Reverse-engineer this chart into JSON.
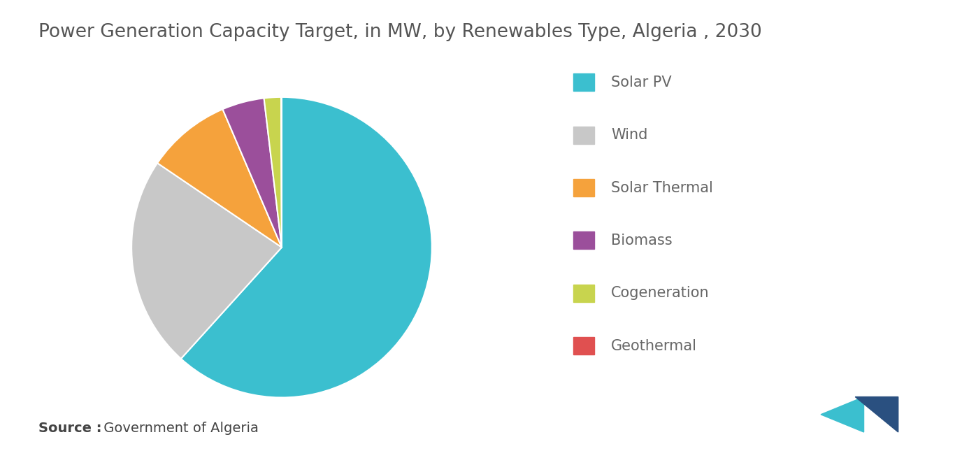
{
  "title": "Power Generation Capacity Target, in MW, by Renewables Type, Algeria , 2030",
  "labels": [
    "Solar PV",
    "Wind",
    "Solar Thermal",
    "Biomass",
    "Cogeneration",
    "Geothermal"
  ],
  "values": [
    13575,
    5010,
    2000,
    1000,
    400,
    15
  ],
  "colors": [
    "#3bbfcf",
    "#c8c8c8",
    "#f5a23c",
    "#9b4f9b",
    "#c8d44e",
    "#e05050"
  ],
  "source_bold": "Source :",
  "source_rest": " Government of Algeria",
  "background_color": "#ffffff",
  "title_fontsize": 19,
  "legend_fontsize": 15,
  "source_fontsize": 14
}
